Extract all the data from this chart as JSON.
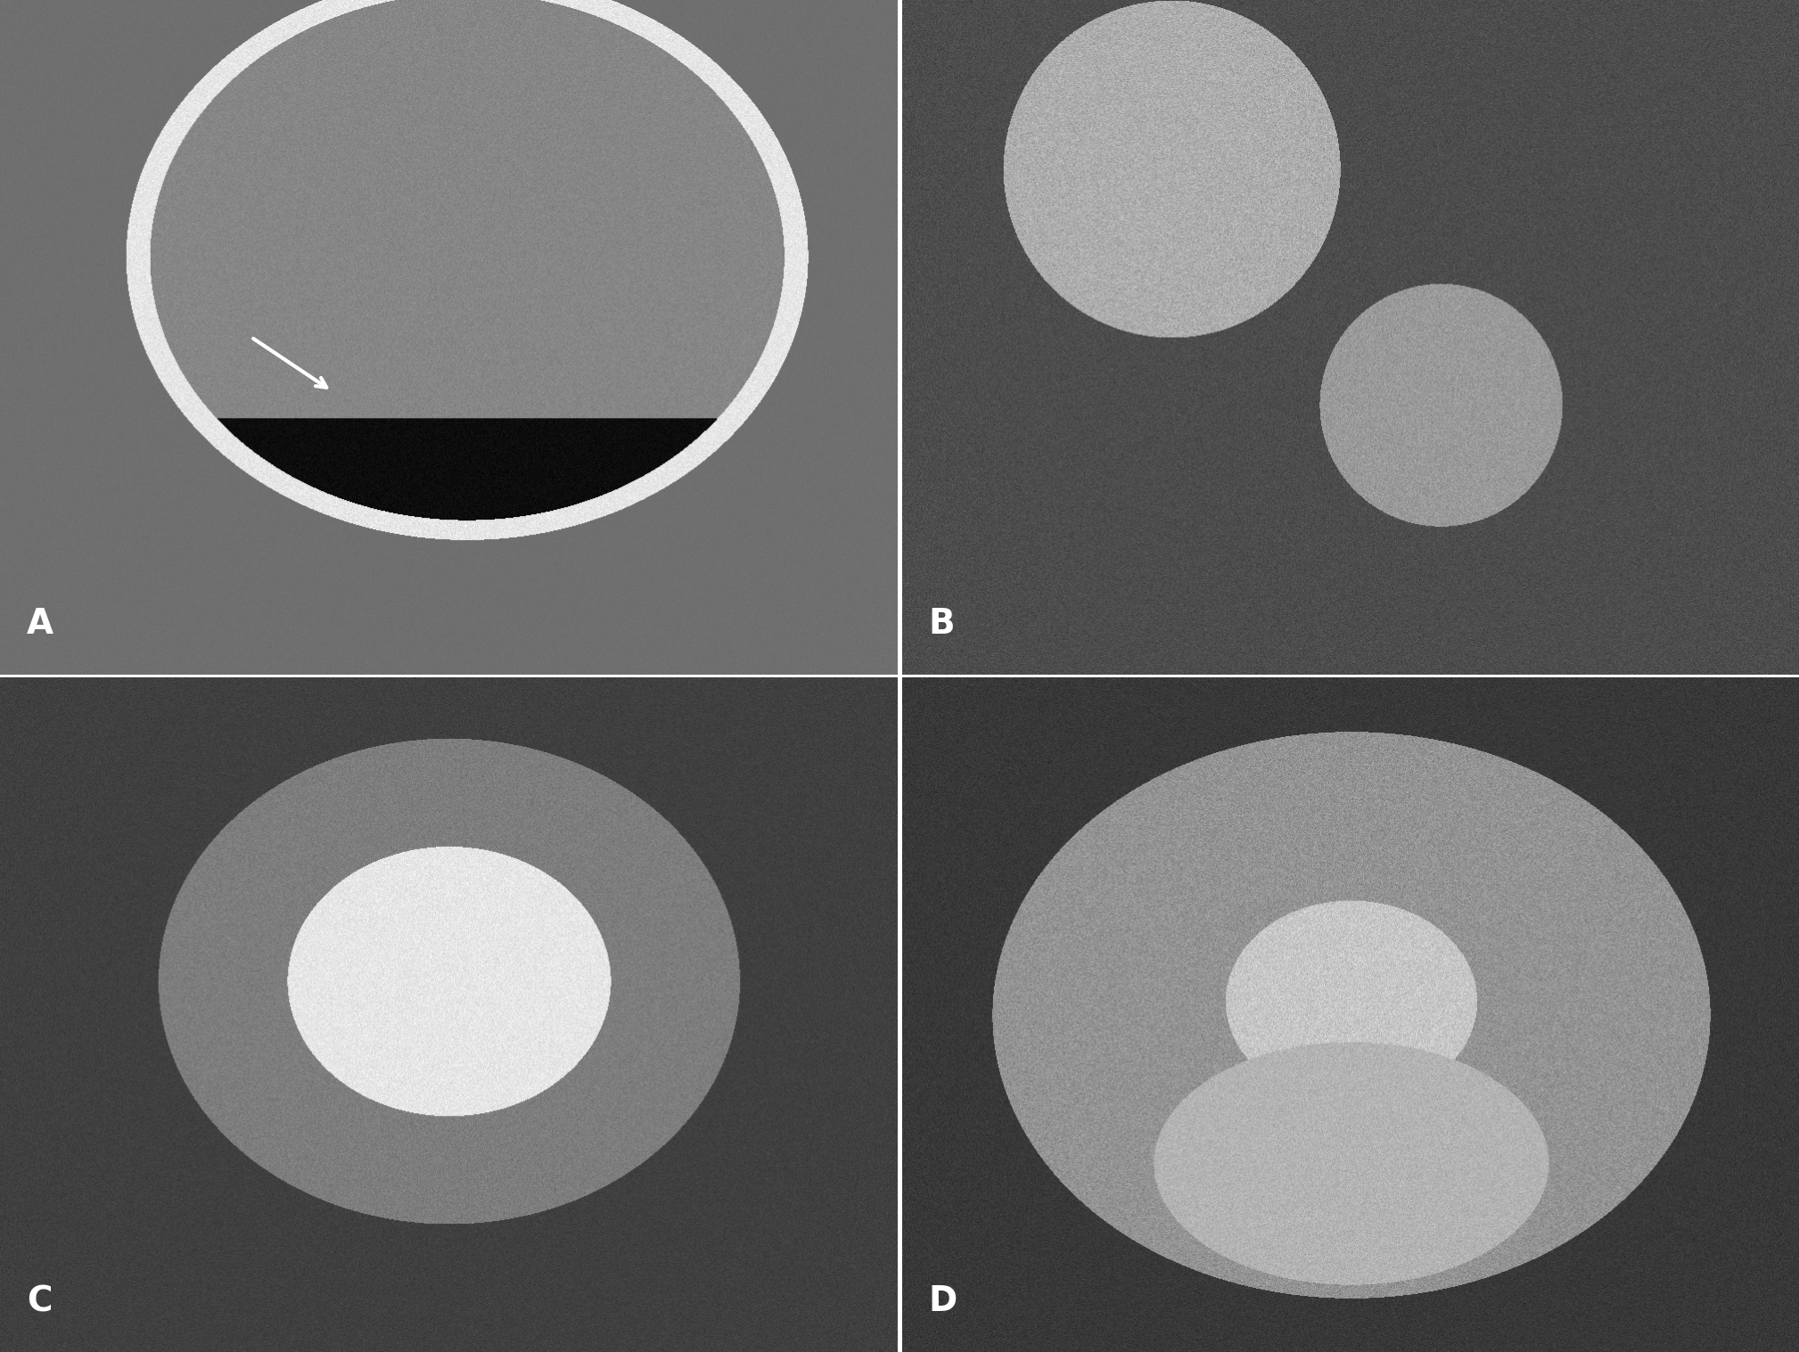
{
  "figure_width": 20.18,
  "figure_height": 15.17,
  "dpi": 100,
  "panels": [
    "A",
    "B",
    "C",
    "D"
  ],
  "panel_positions": {
    "A": [
      0,
      0.5,
      0.5,
      0.5
    ],
    "B": [
      0.5,
      0.5,
      0.5,
      0.5
    ],
    "C": [
      0,
      0,
      0.5,
      0.5
    ],
    "D": [
      0.5,
      0,
      0.5,
      0.5
    ]
  },
  "label_color": "white",
  "label_fontsize": 28,
  "label_fontweight": "bold",
  "bg_color_A": "#7a7a7a",
  "bg_color_B": "#888888",
  "bg_color_C": "#555555",
  "bg_color_D": "#3a3a3a",
  "border_color": "white",
  "border_linewidth": 2,
  "divider_color": "white",
  "divider_linewidth": 3
}
